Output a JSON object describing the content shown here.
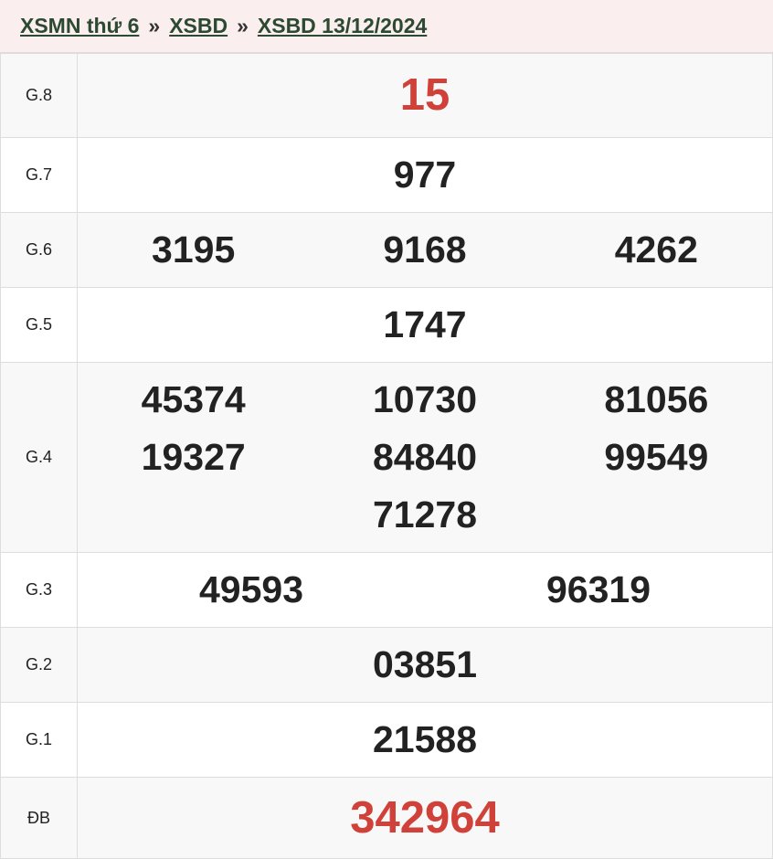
{
  "breadcrumb": [
    "XSMN thứ 6",
    "XSBD",
    "XSBD 13/12/2024"
  ],
  "separator": "»",
  "colors": {
    "special": "#d0413a",
    "link": "#2c4a32"
  },
  "prizes": [
    {
      "label": "G.8",
      "numbers": [
        "15"
      ]
    },
    {
      "label": "G.7",
      "numbers": [
        "977"
      ]
    },
    {
      "label": "G.6",
      "numbers": [
        "3195",
        "9168",
        "4262"
      ]
    },
    {
      "label": "G.5",
      "numbers": [
        "1747"
      ]
    },
    {
      "label": "G.4",
      "numbers": [
        "45374",
        "10730",
        "81056",
        "19327",
        "84840",
        "99549",
        "71278"
      ]
    },
    {
      "label": "G.3",
      "numbers": [
        "49593",
        "96319"
      ]
    },
    {
      "label": "G.2",
      "numbers": [
        "03851"
      ]
    },
    {
      "label": "G.1",
      "numbers": [
        "21588"
      ]
    },
    {
      "label": "ĐB",
      "numbers": [
        "342964"
      ]
    }
  ]
}
